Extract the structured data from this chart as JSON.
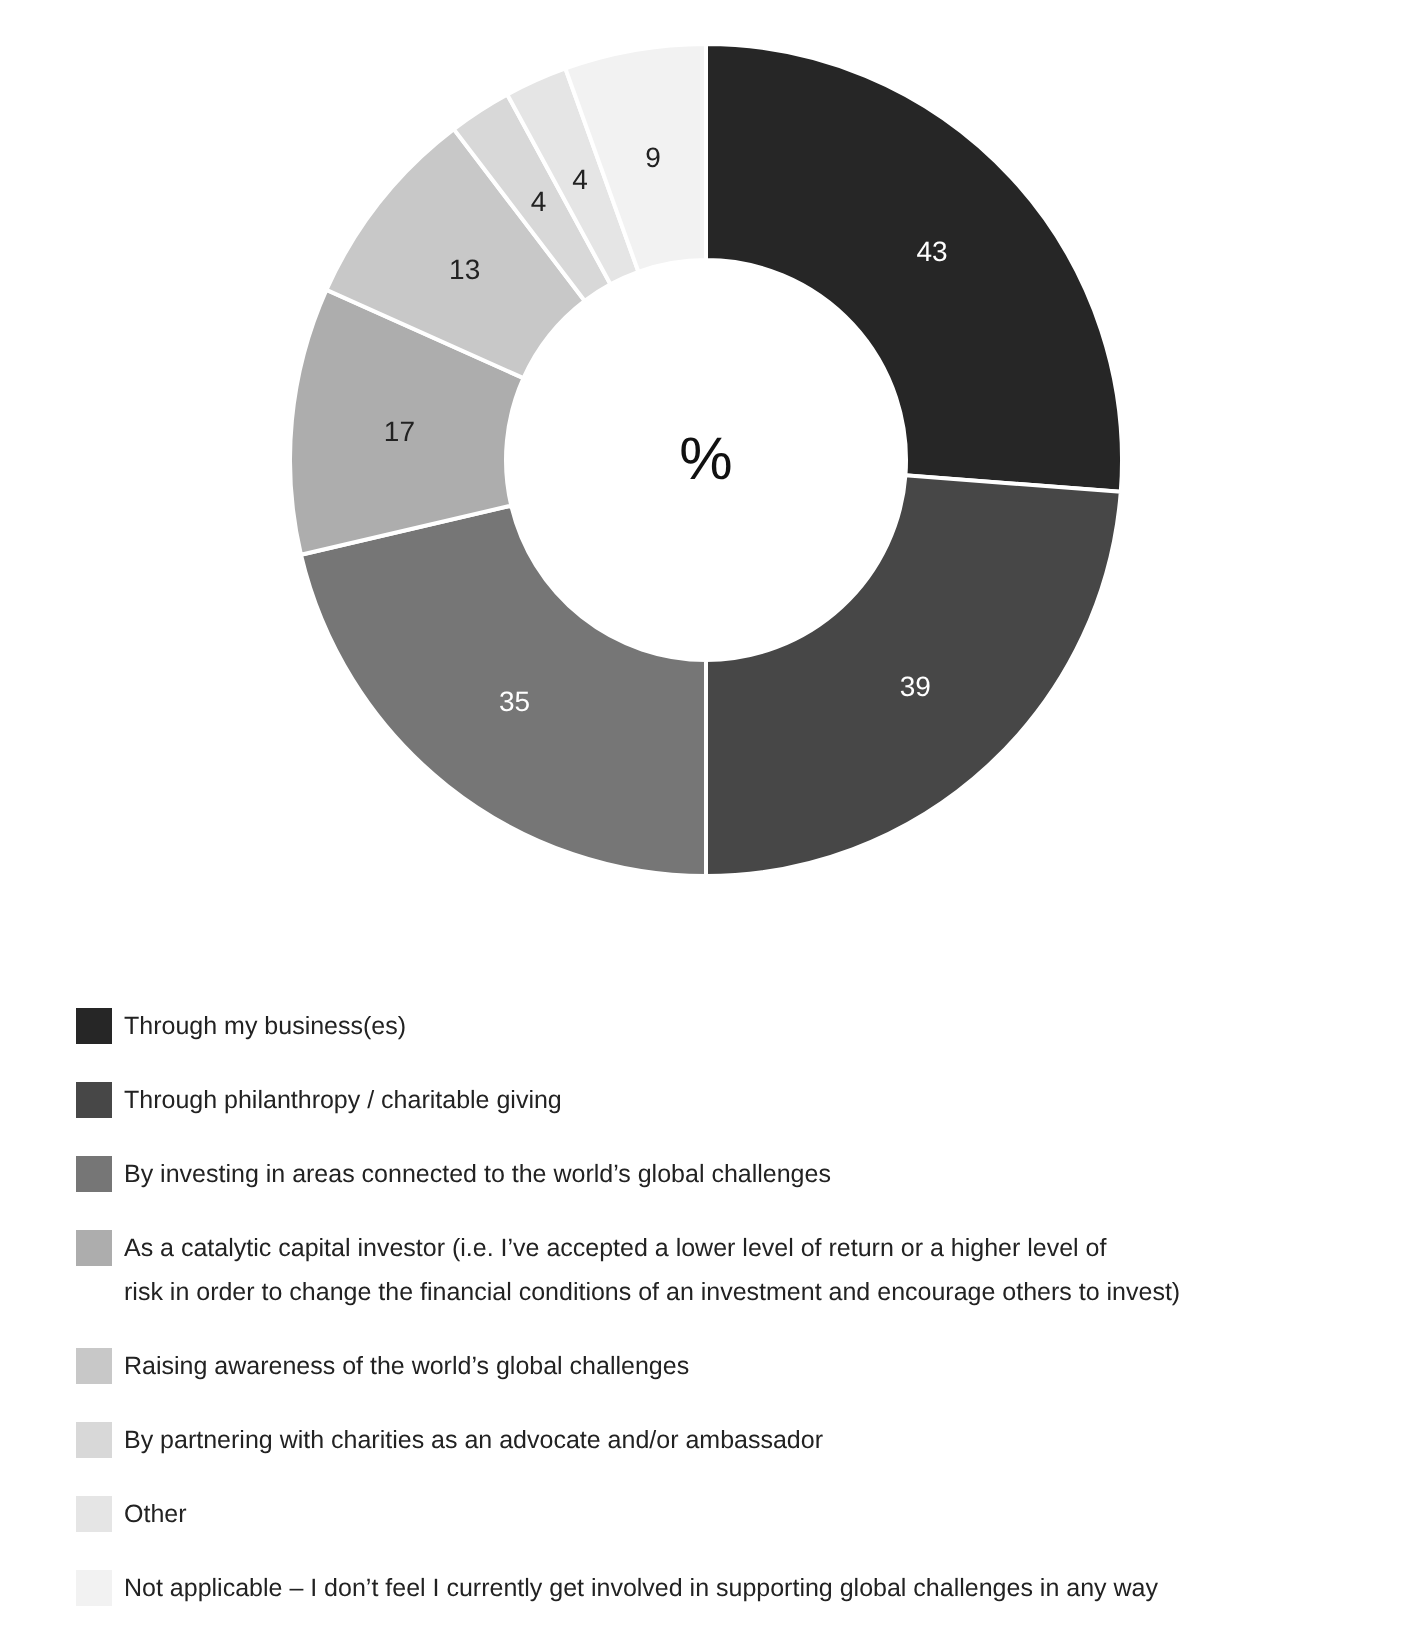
{
  "chart_data": {
    "type": "donut",
    "title": "%",
    "categories": [
      "Through my business(es)",
      "Through philanthropy / charitable giving",
      "By investing in areas connected to the world’s global challenges",
      "As a catalytic capital investor (i.e. I’ve accepted a lower level of return or a higher level of risk in order to change the financial conditions of an investment and encourage others to invest)",
      "Raising awareness of the world’s global challenges",
      "By partnering with charities as an advocate and/or ambassador",
      "Other",
      "Not applicable – I don’t feel I currently get involved in supporting global challenges in any way"
    ],
    "values": [
      43,
      39,
      35,
      17,
      13,
      4,
      4,
      9
    ],
    "colors": [
      "#262626",
      "#474747",
      "#767676",
      "#adadad",
      "#c8c8c8",
      "#d8d8d8",
      "#e5e5e5",
      "#f2f2f2"
    ],
    "data_labels": true,
    "legend": "bottom"
  }
}
